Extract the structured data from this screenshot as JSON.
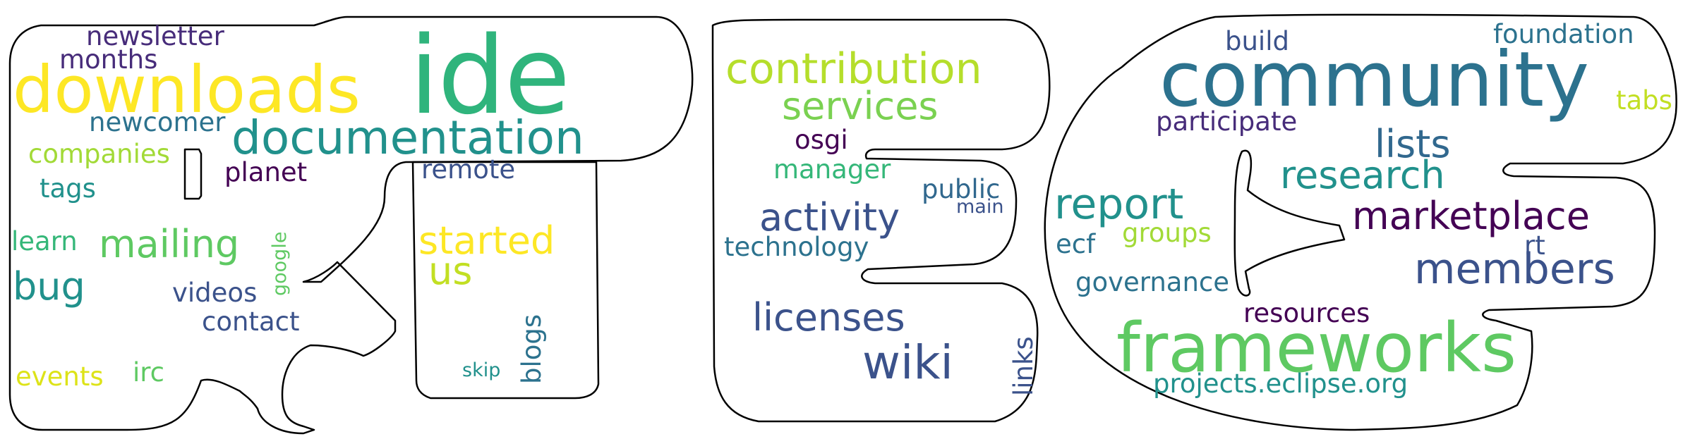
{
  "colors": {
    "background": "#ffffff",
    "outline": "#000000",
    "palette": [
      "#440154",
      "#3b528b",
      "#21918c",
      "#5ec962",
      "#fde725"
    ]
  },
  "words": [
    {
      "text": "ide",
      "color": "#2fb47c"
    },
    {
      "text": "downloads",
      "color": "#fde725"
    },
    {
      "text": "documentation",
      "color": "#21918c"
    },
    {
      "text": "newsletter",
      "color": "#472c7a"
    },
    {
      "text": "months",
      "color": "#472c7a"
    },
    {
      "text": "newcomer",
      "color": "#2c728e"
    },
    {
      "text": "companies",
      "color": "#a2da37"
    },
    {
      "text": "tags",
      "color": "#21918c"
    },
    {
      "text": "planet",
      "color": "#440154"
    },
    {
      "text": "remote",
      "color": "#3b528b"
    },
    {
      "text": "learn",
      "color": "#35b779"
    },
    {
      "text": "mailing",
      "color": "#5ec962"
    },
    {
      "text": "bug",
      "color": "#21918c"
    },
    {
      "text": "google",
      "color": "#5ec962"
    },
    {
      "text": "started",
      "color": "#fde725"
    },
    {
      "text": "us",
      "color": "#c2df23"
    },
    {
      "text": "videos",
      "color": "#3b528b"
    },
    {
      "text": "contact",
      "color": "#3b528b"
    },
    {
      "text": "blogs",
      "color": "#2c728e"
    },
    {
      "text": "events",
      "color": "#dde318"
    },
    {
      "text": "irc",
      "color": "#5ec962"
    },
    {
      "text": "skip",
      "color": "#21918c"
    },
    {
      "text": "contribution",
      "color": "#b5de2b"
    },
    {
      "text": "services",
      "color": "#7ad151"
    },
    {
      "text": "osgi",
      "color": "#440154"
    },
    {
      "text": "manager",
      "color": "#35b779"
    },
    {
      "text": "public",
      "color": "#31688e"
    },
    {
      "text": "main",
      "color": "#3b528b"
    },
    {
      "text": "activity",
      "color": "#3b528b"
    },
    {
      "text": "technology",
      "color": "#2c728e"
    },
    {
      "text": "licenses",
      "color": "#3b528b"
    },
    {
      "text": "wiki",
      "color": "#3b528b"
    },
    {
      "text": "links",
      "color": "#3b528b"
    },
    {
      "text": "build",
      "color": "#3b528b"
    },
    {
      "text": "foundation",
      "color": "#2c728e"
    },
    {
      "text": "community",
      "color": "#2c728e"
    },
    {
      "text": "tabs",
      "color": "#c2df23"
    },
    {
      "text": "participate",
      "color": "#472c7a"
    },
    {
      "text": "lists",
      "color": "#31688e"
    },
    {
      "text": "research",
      "color": "#21918c"
    },
    {
      "text": "report",
      "color": "#21918c"
    },
    {
      "text": "marketplace",
      "color": "#440154"
    },
    {
      "text": "groups",
      "color": "#a2da37"
    },
    {
      "text": "ecf",
      "color": "#2c728e"
    },
    {
      "text": "rt",
      "color": "#3b528b"
    },
    {
      "text": "members",
      "color": "#3b528b"
    },
    {
      "text": "governance",
      "color": "#2c728e"
    },
    {
      "text": "resources",
      "color": "#440154"
    },
    {
      "text": "frameworks",
      "color": "#5ec962"
    },
    {
      "text": "projects.eclipse.org",
      "color": "#21918c"
    }
  ]
}
